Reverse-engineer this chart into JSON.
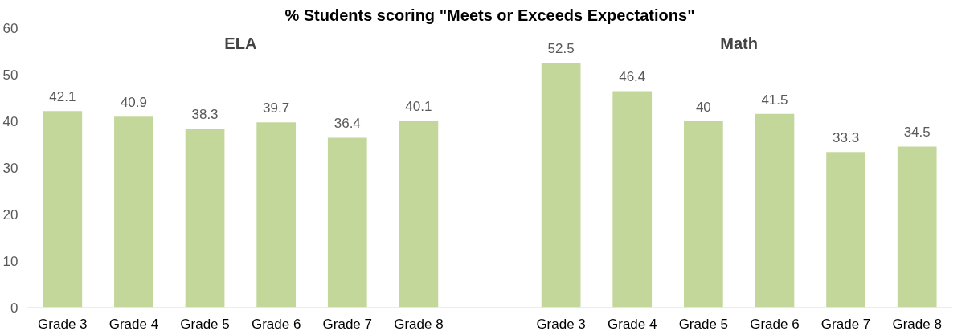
{
  "chart_data": {
    "type": "bar",
    "title": "% Students scoring \"Meets or Exceeds Expectations\"",
    "categories": [
      "Grade 3",
      "Grade 4",
      "Grade 5",
      "Grade 6",
      "Grade 7",
      "Grade 8",
      null,
      "Grade 3",
      "Grade 4",
      "Grade 5",
      "Grade 6",
      "Grade 7",
      "Grade 8"
    ],
    "values": [
      42.1,
      40.9,
      38.3,
      39.7,
      36.4,
      40.1,
      null,
      52.5,
      46.4,
      40,
      41.5,
      33.3,
      34.5
    ],
    "color": "#c4d79b",
    "ylim": [
      0,
      60
    ],
    "yticks": [
      0,
      10,
      20,
      30,
      40,
      50,
      60
    ],
    "grid": false,
    "data_labels": true,
    "annotations": [
      "ELA",
      "Math"
    ]
  }
}
